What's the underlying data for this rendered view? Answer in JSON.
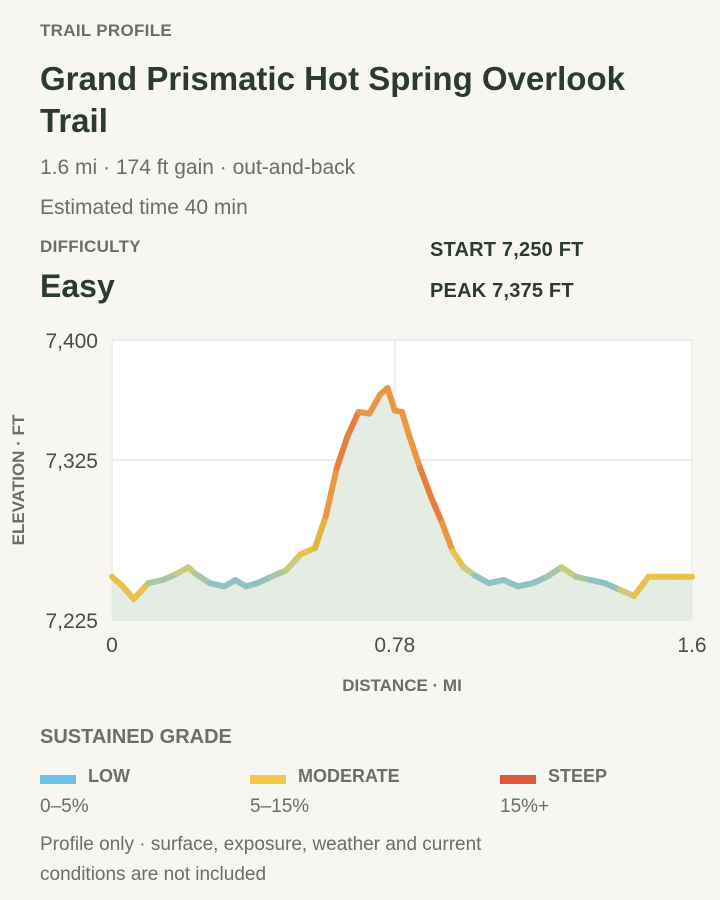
{
  "header": {
    "eyebrow": "TRAIL PROFILE",
    "title": "Grand Prismatic Hot Spring Overlook Trail",
    "meta_line": "1.6 mi · 174 ft gain · out-and-back",
    "time_line": "Estimated time 40 min"
  },
  "difficulty": {
    "label": "DIFFICULTY",
    "value": "Easy"
  },
  "stats": {
    "start": "START 7,250 FT",
    "peak": "PEAK 7,375 FT"
  },
  "chart_data": {
    "type": "area",
    "xlabel": "DISTANCE · MI",
    "ylabel": "ELEVATION · FT",
    "xlim": [
      0,
      1.6
    ],
    "ylim": [
      7225,
      7400
    ],
    "xticks": [
      0,
      0.78,
      1.6
    ],
    "xtick_labels": [
      "0",
      "0.78",
      "1.6"
    ],
    "yticks": [
      7225,
      7325,
      7400
    ],
    "ytick_labels": [
      "7,225",
      "7,325",
      "7,400"
    ],
    "grid": true,
    "line_colored_by": "grade",
    "x": [
      0,
      0.03,
      0.06,
      0.1,
      0.14,
      0.18,
      0.21,
      0.23,
      0.27,
      0.31,
      0.34,
      0.37,
      0.4,
      0.44,
      0.48,
      0.52,
      0.56,
      0.59,
      0.62,
      0.65,
      0.68,
      0.71,
      0.74,
      0.76,
      0.78,
      0.8,
      0.82,
      0.85,
      0.88,
      0.91,
      0.94,
      0.97,
      1.0,
      1.04,
      1.08,
      1.12,
      1.16,
      1.2,
      1.24,
      1.28,
      1.32,
      1.36,
      1.4,
      1.44,
      1.48,
      1.52,
      1.55,
      1.58,
      1.6
    ],
    "y": [
      7252,
      7246,
      7238,
      7248,
      7250,
      7254,
      7258,
      7254,
      7248,
      7246,
      7250,
      7246,
      7248,
      7252,
      7256,
      7266,
      7270,
      7290,
      7320,
      7340,
      7355,
      7354,
      7366,
      7370,
      7356,
      7355,
      7340,
      7320,
      7302,
      7286,
      7268,
      7258,
      7253,
      7248,
      7250,
      7246,
      7248,
      7252,
      7258,
      7252,
      7250,
      7248,
      7244,
      7240,
      7252,
      7252,
      7252,
      7252,
      7252
    ],
    "grade_color_by_point": [
      "#e8c24a",
      "#e8c24a",
      "#e8c24a",
      "#a9c7a4",
      "#a9c7a4",
      "#c7cc7e",
      "#c7cc7e",
      "#a9c7a4",
      "#8fc2c0",
      "#8fc2c0",
      "#8fc2c0",
      "#8fc2c0",
      "#8fc2c0",
      "#a9c7a4",
      "#c7cc7e",
      "#e8c24a",
      "#e9b043",
      "#e89845",
      "#e57e3f",
      "#e57e3f",
      "#e89845",
      "#e89845",
      "#e89845",
      "#e89845",
      "#e89845",
      "#e89845",
      "#e89845",
      "#e57e3f",
      "#e57e3f",
      "#e89845",
      "#e8c24a",
      "#c7cc7e",
      "#8fc2c0",
      "#8fc2c0",
      "#8fc2c0",
      "#8fc2c0",
      "#8fc2c0",
      "#a9c7a4",
      "#c7cc7e",
      "#a9c7a4",
      "#8fc2c0",
      "#8fc2c0",
      "#c7cc7e",
      "#e8c24a",
      "#e8c24a",
      "#e8c24a",
      "#e8c24a",
      "#e8c24a",
      "#e8c24a"
    ],
    "area_color": "#e4ece3"
  },
  "legend": {
    "title": "SUSTAINED GRADE",
    "items": [
      {
        "name": "LOW",
        "range": "0–5%",
        "color": "#6ec1e4"
      },
      {
        "name": "MODERATE",
        "range": "5–15%",
        "color": "#f2c94c"
      },
      {
        "name": "STEEP",
        "range": "15%+",
        "color": "#dd5a3f"
      }
    ]
  },
  "footnote": "Profile only · surface, exposure, weather and current conditions are not included"
}
